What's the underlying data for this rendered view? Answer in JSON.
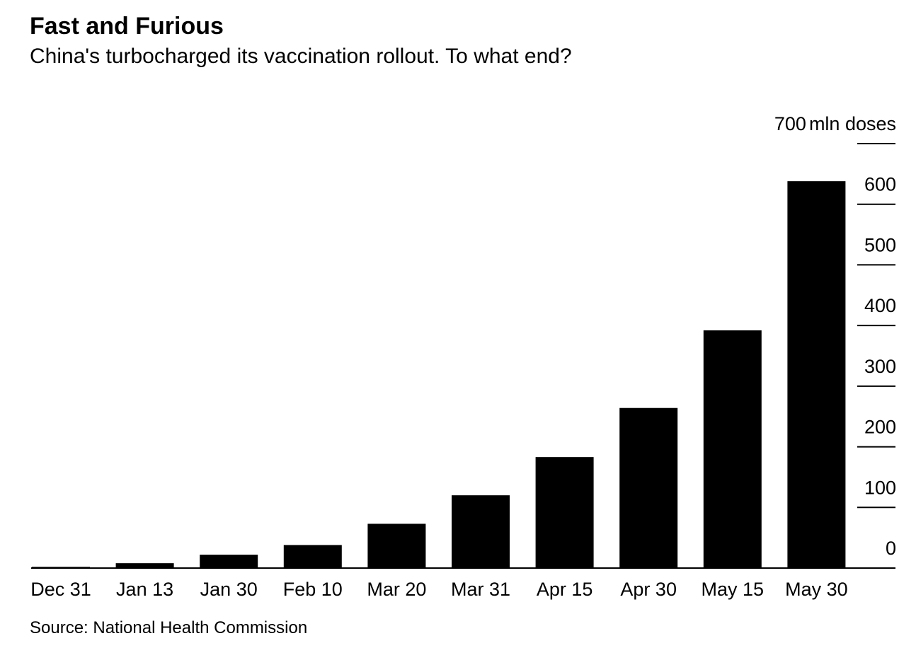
{
  "chart_data": {
    "type": "bar",
    "title": "Fast and Furious",
    "subtitle": "China's turbocharged its vaccination rollout. To what end?",
    "y_label": "mln doses",
    "categories": [
      "Dec 31",
      "Jan 13",
      "Jan 30",
      "Feb 10",
      "Mar 20",
      "Mar 31",
      "Apr 15",
      "Apr 30",
      "May 15",
      "May 30"
    ],
    "values": [
      2,
      8,
      22,
      38,
      73,
      120,
      183,
      264,
      392,
      638
    ],
    "color": "#000000",
    "ylim": [
      0,
      700
    ],
    "yticks": [
      0,
      100,
      200,
      300,
      400,
      500,
      600,
      700
    ],
    "source": "Source: National Health Commission"
  }
}
